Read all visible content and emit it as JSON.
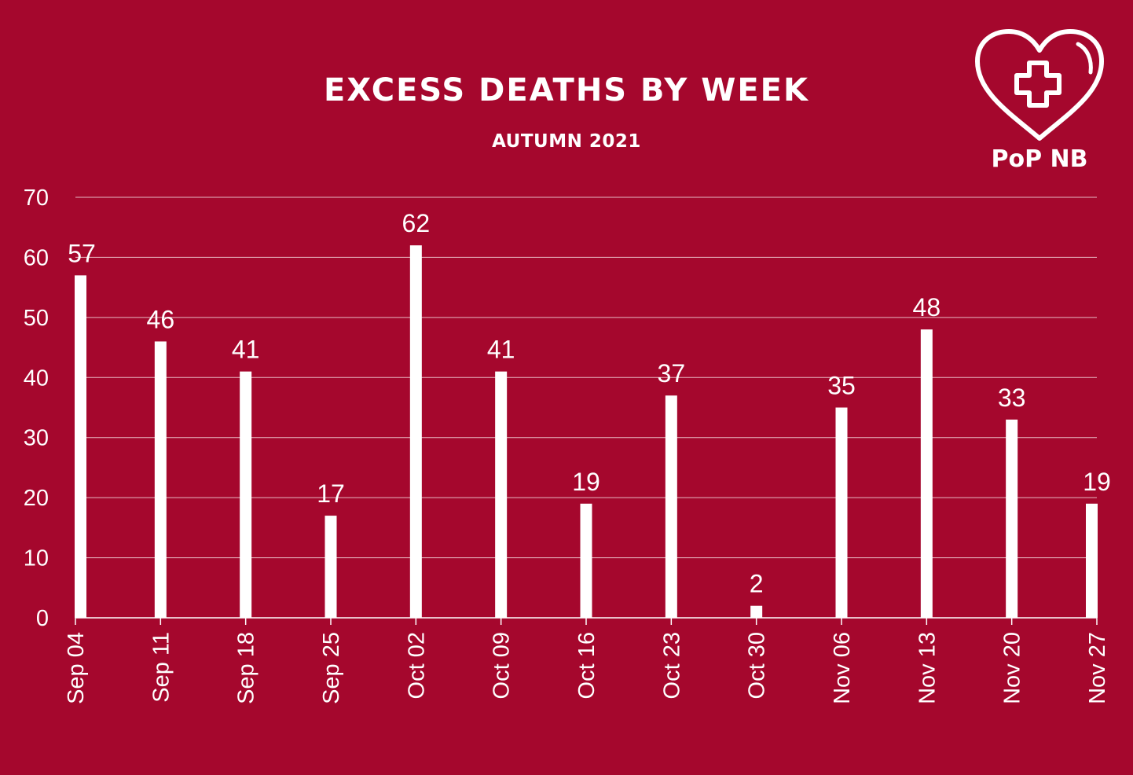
{
  "title": "EXCESS DEATHS BY WEEK",
  "subtitle": "AUTUMN 2021",
  "brand": {
    "text": "PoP NB",
    "icon": "heart-medical-cross-icon"
  },
  "colors": {
    "background": "#a5072d",
    "bar": "#ffffff",
    "text": "#ffffff",
    "gridline": "#e8b8c2"
  },
  "chart_data": {
    "type": "bar",
    "title": "EXCESS DEATHS BY WEEK",
    "subtitle": "AUTUMN 2021",
    "xlabel": "",
    "ylabel": "",
    "categories": [
      "Sep 04",
      "Sep 11",
      "Sep 18",
      "Sep 25",
      "Oct 02",
      "Oct 09",
      "Oct 16",
      "Oct 23",
      "Oct 30",
      "Nov 06",
      "Nov 13",
      "Nov 20",
      "Nov 27"
    ],
    "values": [
      57,
      46,
      41,
      17,
      62,
      41,
      19,
      37,
      2,
      35,
      48,
      33,
      19
    ],
    "ylim": [
      0,
      70
    ],
    "yticks": [
      0,
      10,
      20,
      30,
      40,
      50,
      60,
      70
    ],
    "grid": true,
    "legend": "none",
    "data_labels": true
  }
}
